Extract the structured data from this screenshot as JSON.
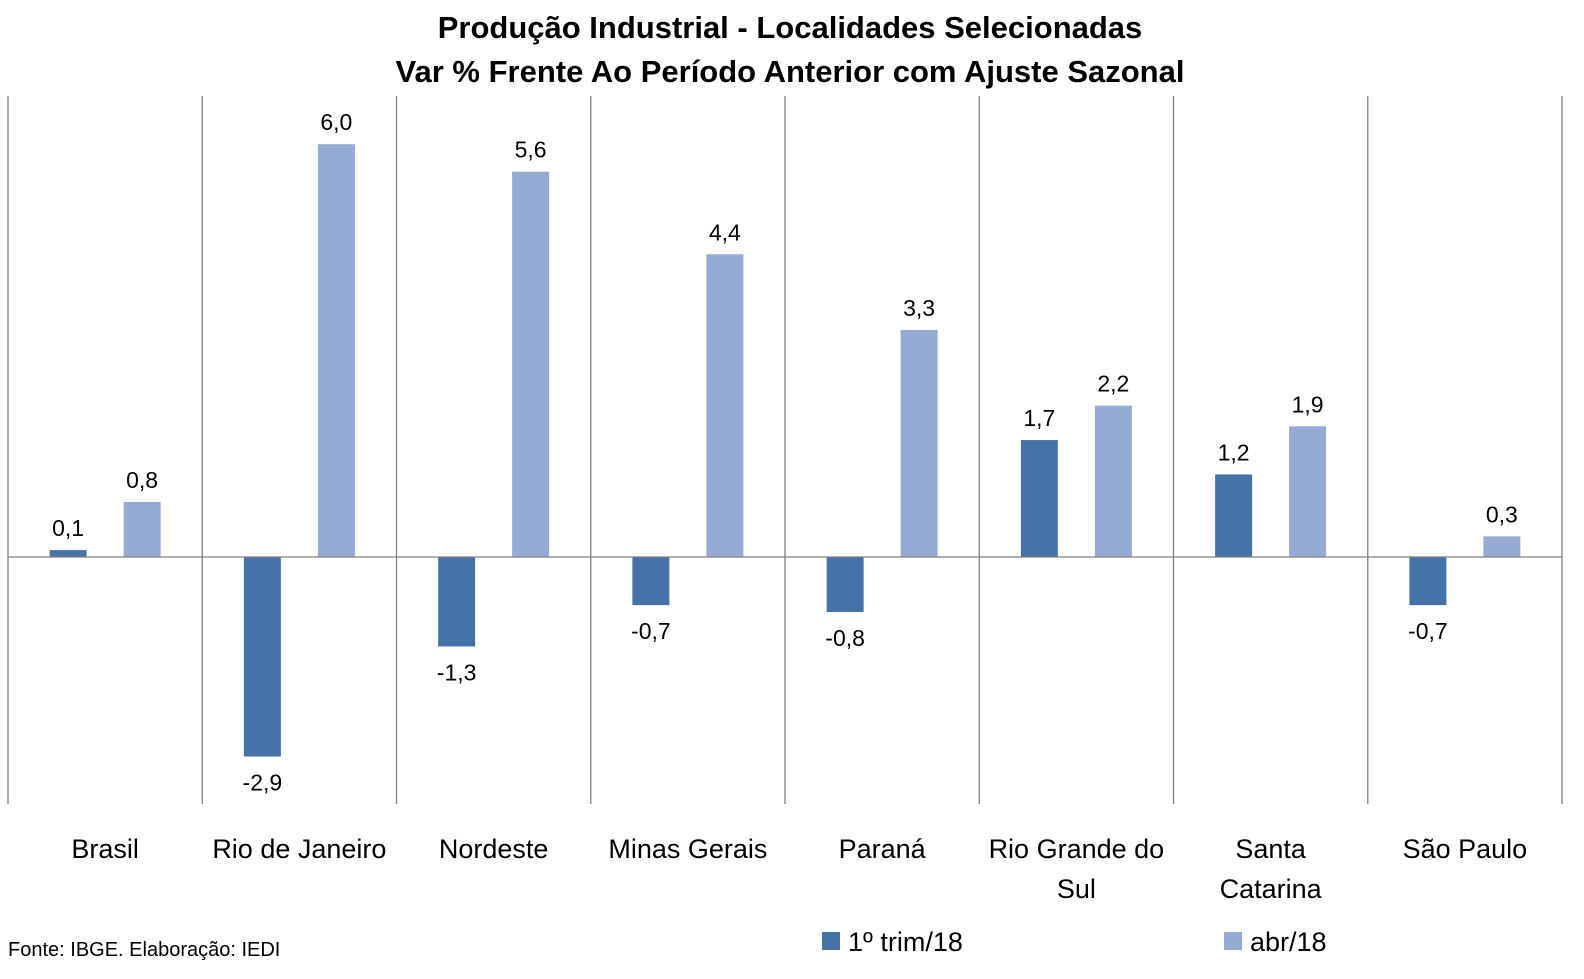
{
  "chart_data": {
    "type": "bar",
    "title": "Produção Industrial - Localidades Selecionadas",
    "subtitle": "Var % Frente Ao Período Anterior com Ajuste Sazonal",
    "categories": [
      [
        "Brasil"
      ],
      [
        "Rio de Janeiro"
      ],
      [
        "Nordeste"
      ],
      [
        "Minas Gerais"
      ],
      [
        "Paraná"
      ],
      [
        "Rio Grande do",
        "Sul"
      ],
      [
        "Santa",
        "Catarina"
      ],
      [
        "São Paulo"
      ]
    ],
    "series": [
      {
        "name": "1º trim/18",
        "color": "#4573a7",
        "values": [
          0.1,
          -2.9,
          -1.3,
          -0.7,
          -0.8,
          1.7,
          1.2,
          -0.7
        ],
        "labels": [
          "0,1",
          "-2,9",
          "-1,3",
          "-0,7",
          "-0,8",
          "1,7",
          "1,2",
          "-0,7"
        ]
      },
      {
        "name": "abr/18",
        "color": "#95abd4",
        "values": [
          0.8,
          6.0,
          5.6,
          4.4,
          3.3,
          2.2,
          1.9,
          0.3
        ],
        "labels": [
          "0,8",
          "6,0",
          "5,6",
          "4,4",
          "3,3",
          "2,2",
          "1,9",
          "0,3"
        ]
      }
    ],
    "ylim": [
      -3.6,
      6.9
    ],
    "xlabel": "",
    "ylabel": "",
    "legend": "bottom-right",
    "grid": false
  },
  "footer": {
    "source": "Fonte: IBGE. Elaboração: IEDI"
  }
}
